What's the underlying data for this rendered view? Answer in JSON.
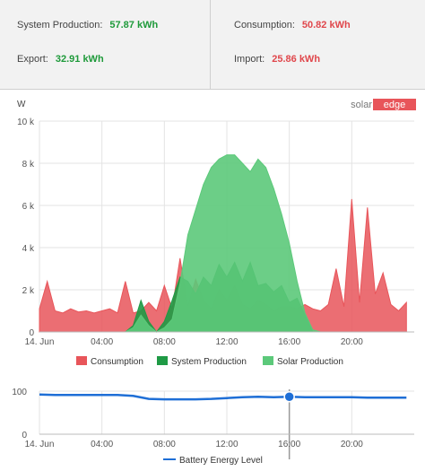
{
  "summary": {
    "system_production_label": "System Production:",
    "system_production_value": "57.87 kWh",
    "consumption_label": "Consumption:",
    "consumption_value": "50.82 kWh",
    "export_label": "Export:",
    "export_value": "32.91 kWh",
    "import_label": "Import:",
    "import_value": "25.86 kWh"
  },
  "logo": {
    "text_dark": "solar",
    "text_light": "edge"
  },
  "colors": {
    "consumption": "#e8555a",
    "system_production": "#1f9a45",
    "solar_production": "#5cc97a",
    "battery": "#1f6fd6",
    "value_green": "#1e9a3a",
    "value_red": "#e0474c"
  },
  "chart_data": [
    {
      "type": "area",
      "ylabel": "W",
      "ylim": [
        0,
        10000
      ],
      "y_ticks": [
        "0",
        "2 k",
        "4 k",
        "6 k",
        "8 k",
        "10 k"
      ],
      "x_ticks": [
        "14. Jun",
        "04:00",
        "08:00",
        "12:00",
        "16:00",
        "20:00"
      ],
      "x_hours": [
        0,
        0.5,
        1,
        1.5,
        2,
        2.5,
        3,
        3.5,
        4,
        4.5,
        5,
        5.5,
        6,
        6.5,
        7,
        7.5,
        8,
        8.5,
        9,
        9.5,
        10,
        10.5,
        11,
        11.5,
        12,
        12.5,
        13,
        13.5,
        14,
        14.5,
        15,
        15.5,
        16,
        16.5,
        17,
        17.5,
        18,
        18.5,
        19,
        19.5,
        20,
        20.5,
        21,
        21.5,
        22,
        22.5,
        23,
        23.5
      ],
      "legend": [
        "Consumption",
        "System Production",
        "Solar Production"
      ],
      "legend_position": "bottom",
      "series": [
        {
          "name": "Consumption",
          "values": [
            1100,
            2400,
            1000,
            900,
            1100,
            950,
            1000,
            900,
            1000,
            1100,
            900,
            2400,
            900,
            1000,
            1400,
            1000,
            2200,
            1100,
            3500,
            1200,
            2500,
            1500,
            1100,
            2000,
            1500,
            2200,
            1300,
            1100,
            1500,
            1300,
            1000,
            1200,
            1200,
            1100,
            1300,
            1100,
            1000,
            1300,
            3000,
            1200,
            6300,
            1400,
            5900,
            1800,
            2800,
            1300,
            1000,
            1400
          ]
        },
        {
          "name": "System Production",
          "values": [
            0,
            0,
            0,
            0,
            0,
            0,
            0,
            0,
            0,
            0,
            0,
            0,
            300,
            1500,
            500,
            0,
            500,
            1500,
            2600,
            2400,
            1800,
            2600,
            2200,
            3200,
            2600,
            3300,
            2400,
            3300,
            2200,
            2300,
            1900,
            2200,
            1400,
            1600,
            800,
            0,
            0,
            0,
            0,
            0,
            0,
            0,
            0,
            0,
            0,
            0,
            0,
            0
          ]
        },
        {
          "name": "Solar Production",
          "values": [
            0,
            0,
            0,
            0,
            0,
            0,
            0,
            0,
            0,
            0,
            0,
            0,
            200,
            800,
            300,
            0,
            200,
            600,
            2300,
            4600,
            5800,
            7000,
            7800,
            8200,
            8400,
            8400,
            8000,
            7600,
            8200,
            7800,
            6800,
            5600,
            4200,
            2400,
            900,
            100,
            0,
            0,
            0,
            0,
            0,
            0,
            0,
            0,
            0,
            0,
            0,
            0
          ]
        }
      ]
    },
    {
      "type": "line",
      "ylim": [
        0,
        100
      ],
      "y_ticks": [
        "0",
        "100"
      ],
      "x_ticks": [
        "14. Jun",
        "04:00",
        "08:00",
        "12:00",
        "16:00",
        "20:00"
      ],
      "x_hours": [
        0,
        1,
        2,
        3,
        4,
        5,
        6,
        7,
        8,
        9,
        10,
        11,
        12,
        13,
        14,
        15,
        16,
        17,
        18,
        19,
        20,
        21,
        22,
        23,
        23.5
      ],
      "legend": [
        "Battery Energy Level"
      ],
      "legend_position": "bottom",
      "highlight_hour": 16,
      "series": [
        {
          "name": "Battery Energy Level",
          "values": [
            92,
            91,
            91,
            91,
            91,
            91,
            89,
            82,
            81,
            81,
            81,
            82,
            84,
            86,
            87,
            86,
            87,
            86,
            86,
            86,
            86,
            85,
            85,
            85,
            85
          ]
        }
      ]
    }
  ]
}
